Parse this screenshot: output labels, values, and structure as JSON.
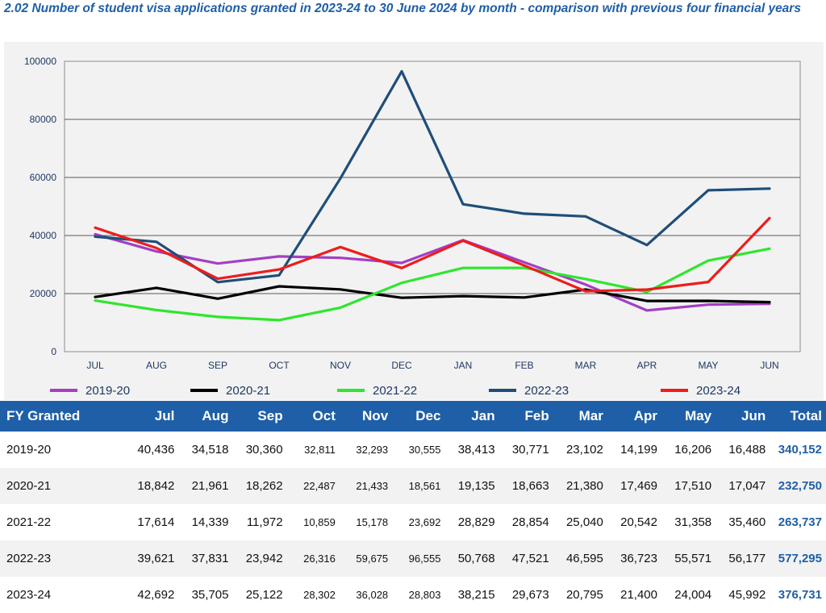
{
  "title": "2.02 Number of student visa applications granted in 2023-24 to 30 June 2024 by month - comparison with previous four financial years",
  "chart_data": {
    "type": "line",
    "categories": [
      "JUL",
      "AUG",
      "SEP",
      "OCT",
      "NOV",
      "DEC",
      "JAN",
      "FEB",
      "MAR",
      "APR",
      "MAY",
      "JUN"
    ],
    "ylim": [
      0,
      100000
    ],
    "yticks": [
      "0",
      "20000",
      "40000",
      "60000",
      "80000",
      "100000"
    ],
    "grid": true,
    "legend_placement": "bottom",
    "series": [
      {
        "name": "2019-20",
        "color": "#a43fc4",
        "values": [
          40436,
          34518,
          30360,
          32811,
          32293,
          30555,
          38413,
          30771,
          23102,
          14199,
          16206,
          16488
        ]
      },
      {
        "name": "2020-21",
        "color": "#000000",
        "values": [
          18842,
          21961,
          18262,
          22487,
          21433,
          18561,
          19135,
          18663,
          21380,
          17469,
          17510,
          17047
        ]
      },
      {
        "name": "2021-22",
        "color": "#2ee62e",
        "values": [
          17614,
          14339,
          11972,
          10859,
          15178,
          23692,
          28829,
          28854,
          25040,
          20542,
          31358,
          35460
        ]
      },
      {
        "name": "2022-23",
        "color": "#1f4e79",
        "values": [
          39621,
          37831,
          23942,
          26316,
          59675,
          96555,
          50768,
          47521,
          46595,
          36723,
          55571,
          56177
        ]
      },
      {
        "name": "2023-24",
        "color": "#ee1c1c",
        "values": [
          42692,
          35705,
          25122,
          28302,
          36028,
          28803,
          38215,
          29673,
          20795,
          21400,
          24004,
          45992
        ]
      }
    ]
  },
  "table": {
    "headers": [
      "FY Granted",
      "Jul",
      "Aug",
      "Sep",
      "Oct",
      "Nov",
      "Dec",
      "Jan",
      "Feb",
      "Mar",
      "Apr",
      "May",
      "Jun",
      "Total"
    ],
    "rows": [
      [
        "2019-20",
        "40,436",
        "34,518",
        "30,360",
        "32,811",
        "32,293",
        "30,555",
        "38,413",
        "30,771",
        "23,102",
        "14,199",
        "16,206",
        "16,488",
        "340,152"
      ],
      [
        "2020-21",
        "18,842",
        "21,961",
        "18,262",
        "22,487",
        "21,433",
        "18,561",
        "19,135",
        "18,663",
        "21,380",
        "17,469",
        "17,510",
        "17,047",
        "232,750"
      ],
      [
        "2021-22",
        "17,614",
        "14,339",
        "11,972",
        "10,859",
        "15,178",
        "23,692",
        "28,829",
        "28,854",
        "25,040",
        "20,542",
        "31,358",
        "35,460",
        "263,737"
      ],
      [
        "2022-23",
        "39,621",
        "37,831",
        "23,942",
        "26,316",
        "59,675",
        "96,555",
        "50,768",
        "47,521",
        "46,595",
        "36,723",
        "55,571",
        "56,177",
        "577,295"
      ],
      [
        "2023-24",
        "42,692",
        "35,705",
        "25,122",
        "28,302",
        "36,028",
        "28,803",
        "38,215",
        "29,673",
        "20,795",
        "21,400",
        "24,004",
        "45,992",
        "376,731"
      ]
    ]
  }
}
